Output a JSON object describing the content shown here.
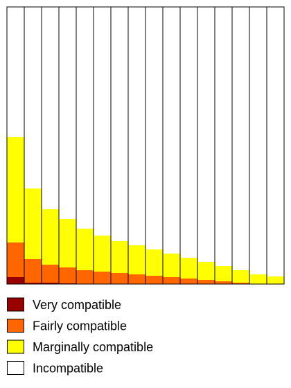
{
  "chart_data": {
    "type": "bar",
    "stacked": true,
    "ylim": [
      0,
      100
    ],
    "series": [
      {
        "name": "Very compatible",
        "color": "#990000",
        "values": [
          2.5,
          0.5,
          0.5,
          0.25,
          0,
          0,
          0,
          0,
          0,
          0,
          0,
          0,
          0,
          0,
          0,
          0
        ]
      },
      {
        "name": "Fairly compatible",
        "color": "#ff6600",
        "values": [
          12.5,
          8.5,
          6.5,
          5.75,
          5,
          4.5,
          4,
          3.5,
          3,
          2.5,
          2,
          1.5,
          1,
          0.5,
          0,
          0
        ]
      },
      {
        "name": "Marginally compatible",
        "color": "#ffff00",
        "values": [
          38,
          25.5,
          20,
          17.5,
          15,
          13,
          11.5,
          10.5,
          9.5,
          8.5,
          7.5,
          6.5,
          5.5,
          4.5,
          3.5,
          2.75
        ]
      },
      {
        "name": "Incompatible",
        "color": "#ffffff",
        "values": [
          47,
          65.5,
          73,
          76.5,
          80,
          82.5,
          84.5,
          86,
          87.5,
          89,
          90.5,
          92,
          93.5,
          95,
          96.5,
          97.25
        ]
      }
    ]
  }
}
